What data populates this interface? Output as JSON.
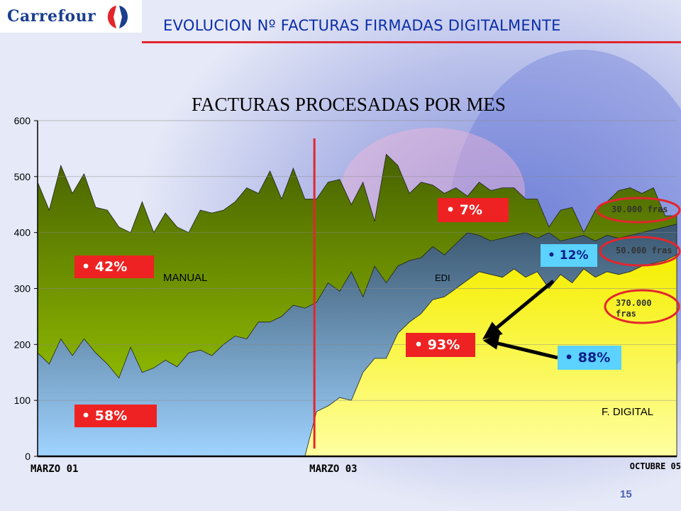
{
  "header": {
    "logo_text": "Carrefour",
    "title": "EVOLUCION Nº FACTURAS FIRMADAS DIGITALMENTE",
    "page_number": "15"
  },
  "colors": {
    "manual": "#6f9200",
    "edi": "#4e6d87",
    "digital": "#ffff00",
    "accent_red": "#e3262c",
    "label_blue": "#5bd2ff"
  },
  "chart_data": {
    "type": "area",
    "title": "FACTURAS PROCESADAS POR MES",
    "ylim": [
      0,
      600
    ],
    "y_ticks": [
      "0",
      "100",
      "200",
      "300",
      "400",
      "500",
      "600"
    ],
    "x_range": [
      0,
      55
    ],
    "x_labels": [
      {
        "x": 0,
        "text": "MARZO 01"
      },
      {
        "x": 24,
        "text": "MARZO 03"
      },
      {
        "x": 55,
        "text": "OCTUBRE 05"
      }
    ],
    "grid": true,
    "vertical_marker_x": 24,
    "series": [
      {
        "name": "MANUAL",
        "values": [
          490,
          440,
          520,
          470,
          505,
          445,
          440,
          410,
          400,
          455,
          400,
          435,
          410,
          400,
          440,
          435,
          440,
          455,
          480,
          470,
          510,
          460,
          515,
          460,
          460,
          490,
          495,
          450,
          490,
          420,
          540,
          520,
          470,
          490,
          485,
          470,
          480,
          465,
          490,
          475,
          480,
          480,
          460,
          460,
          410,
          440,
          445,
          400,
          440,
          455,
          475,
          480,
          470,
          480,
          430,
          430
        ]
      },
      {
        "name": "EDI",
        "values": [
          185,
          165,
          210,
          180,
          210,
          185,
          165,
          140,
          195,
          150,
          158,
          172,
          160,
          185,
          190,
          180,
          200,
          215,
          210,
          240,
          240,
          250,
          270,
          265,
          275,
          310,
          295,
          330,
          285,
          340,
          310,
          340,
          350,
          355,
          375,
          360,
          380,
          400,
          395,
          385,
          390,
          395,
          400,
          390,
          400,
          385,
          390,
          395,
          385,
          395,
          390,
          395,
          400,
          405,
          410,
          415
        ]
      },
      {
        "name": "F. DIGITAL",
        "values": [
          0,
          0,
          0,
          0,
          0,
          0,
          0,
          0,
          0,
          0,
          0,
          0,
          0,
          0,
          0,
          0,
          0,
          0,
          0,
          0,
          0,
          0,
          0,
          0,
          80,
          90,
          105,
          100,
          150,
          175,
          175,
          220,
          240,
          255,
          280,
          285,
          300,
          315,
          330,
          325,
          320,
          335,
          320,
          330,
          300,
          325,
          310,
          335,
          320,
          330,
          325,
          330,
          340,
          345,
          350,
          360
        ]
      }
    ],
    "annotations": {
      "manual_label": "MANUAL",
      "edi_label": "EDI",
      "digital_label": "F. DIGITAL",
      "pct_manual_before": "42%",
      "pct_edi_before": "58%",
      "pct_manual_after": "7%",
      "pct_93": "93%",
      "pct_12": "12%",
      "pct_88": "88%",
      "callout_30k": "30.000 fras",
      "callout_50k": "50.000 fras",
      "callout_370k_1": "370.000",
      "callout_370k_2": "fras"
    }
  }
}
